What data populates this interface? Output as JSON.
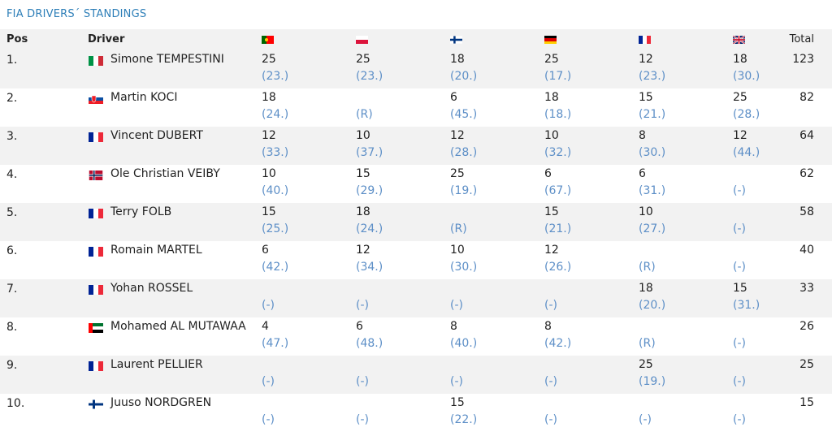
{
  "title": "FIA DRIVERS´ STANDINGS",
  "headers": {
    "pos": "Pos",
    "driver": "Driver",
    "total": "Total",
    "events": [
      {
        "flag": "portugal-flag-icon",
        "colors": [
          "#006600",
          "#ff0000"
        ]
      },
      {
        "flag": "poland-flag-icon",
        "colors": [
          "#ffffff",
          "#dc143c"
        ]
      },
      {
        "flag": "finland-flag-icon",
        "colors": [
          "#ffffff",
          "#003580"
        ]
      },
      {
        "flag": "germany-flag-icon",
        "colors": [
          "#000000",
          "#dd0000",
          "#ffce00"
        ]
      },
      {
        "flag": "france-flag-icon",
        "colors": [
          "#002395",
          "#ffffff",
          "#ed2939"
        ]
      },
      {
        "flag": "uk-flag-icon",
        "colors": [
          "#012169",
          "#ffffff",
          "#c8102e"
        ]
      }
    ]
  },
  "rows": [
    {
      "pos": "1.",
      "flag": "italy-flag-icon",
      "flag_colors": [
        "#009246",
        "#ffffff",
        "#ce2b37"
      ],
      "name": "Simone TEMPESTINI",
      "points": [
        "25",
        "25",
        "18",
        "25",
        "12",
        "18"
      ],
      "places": [
        "(23.)",
        "(23.)",
        "(20.)",
        "(17.)",
        "(23.)",
        "(30.)"
      ],
      "total": "123"
    },
    {
      "pos": "2.",
      "flag": "slovakia-flag-icon",
      "flag_colors": [
        "#ffffff",
        "#0b4ea2",
        "#ee1c25"
      ],
      "name": "Martin KOCI",
      "points": [
        "18",
        "",
        "6",
        "18",
        "15",
        "25"
      ],
      "places": [
        "(24.)",
        "(R)",
        "(45.)",
        "(18.)",
        "(21.)",
        "(28.)"
      ],
      "total": "82"
    },
    {
      "pos": "3.",
      "flag": "france-flag-icon",
      "flag_colors": [
        "#002395",
        "#ffffff",
        "#ed2939"
      ],
      "name": "Vincent DUBERT",
      "points": [
        "12",
        "10",
        "12",
        "10",
        "8",
        "12"
      ],
      "places": [
        "(33.)",
        "(37.)",
        "(28.)",
        "(32.)",
        "(30.)",
        "(44.)"
      ],
      "total": "64"
    },
    {
      "pos": "4.",
      "flag": "norway-flag-icon",
      "flag_colors": [
        "#ba0c2f",
        "#ffffff",
        "#00205b"
      ],
      "name": "Ole Christian VEIBY",
      "points": [
        "10",
        "15",
        "25",
        "6",
        "6",
        ""
      ],
      "places": [
        "(40.)",
        "(29.)",
        "(19.)",
        "(67.)",
        "(31.)",
        "(-)"
      ],
      "total": "62"
    },
    {
      "pos": "5.",
      "flag": "france-flag-icon",
      "flag_colors": [
        "#002395",
        "#ffffff",
        "#ed2939"
      ],
      "name": "Terry FOLB",
      "points": [
        "15",
        "18",
        "",
        "15",
        "10",
        ""
      ],
      "places": [
        "(25.)",
        "(24.)",
        "(R)",
        "(21.)",
        "(27.)",
        "(-)"
      ],
      "total": "58"
    },
    {
      "pos": "6.",
      "flag": "france-flag-icon",
      "flag_colors": [
        "#002395",
        "#ffffff",
        "#ed2939"
      ],
      "name": "Romain MARTEL",
      "points": [
        "6",
        "12",
        "10",
        "12",
        "",
        ""
      ],
      "places": [
        "(42.)",
        "(34.)",
        "(30.)",
        "(26.)",
        "(R)",
        "(-)"
      ],
      "total": "40"
    },
    {
      "pos": "7.",
      "flag": "france-flag-icon",
      "flag_colors": [
        "#002395",
        "#ffffff",
        "#ed2939"
      ],
      "name": "Yohan ROSSEL",
      "points": [
        "",
        "",
        "",
        "",
        "18",
        "15"
      ],
      "places": [
        "(-)",
        "(-)",
        "(-)",
        "(-)",
        "(20.)",
        "(31.)"
      ],
      "total": "33"
    },
    {
      "pos": "8.",
      "flag": "uae-flag-icon",
      "flag_colors": [
        "#00732f",
        "#ffffff",
        "#000000"
      ],
      "name": "Mohamed AL MUTAWAA",
      "points": [
        "4",
        "6",
        "8",
        "8",
        "",
        ""
      ],
      "places": [
        "(47.)",
        "(48.)",
        "(40.)",
        "(42.)",
        "(R)",
        "(-)"
      ],
      "total": "26"
    },
    {
      "pos": "9.",
      "flag": "france-flag-icon",
      "flag_colors": [
        "#002395",
        "#ffffff",
        "#ed2939"
      ],
      "name": "Laurent PELLIER",
      "points": [
        "",
        "",
        "",
        "",
        "25",
        ""
      ],
      "places": [
        "(-)",
        "(-)",
        "(-)",
        "(-)",
        "(19.)",
        "(-)"
      ],
      "total": "25"
    },
    {
      "pos": "10.",
      "flag": "finland-flag-icon",
      "flag_colors": [
        "#ffffff",
        "#003580",
        "#ffffff"
      ],
      "name": "Juuso NORDGREN",
      "points": [
        "",
        "",
        "15",
        "",
        "",
        ""
      ],
      "places": [
        "(-)",
        "(-)",
        "(22.)",
        "(-)",
        "(-)",
        "(-)"
      ],
      "total": "15"
    }
  ]
}
